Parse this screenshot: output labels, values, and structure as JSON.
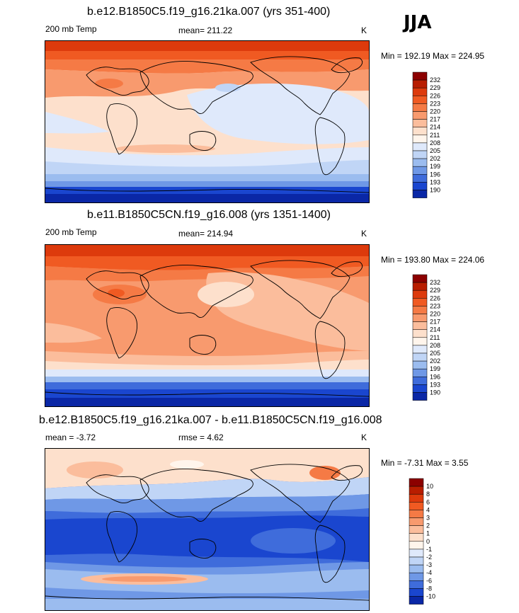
{
  "season": "JJA",
  "panels": [
    {
      "title": "b.e12.B1850C5.f19_g16.21ka.007 (yrs 351-400)",
      "left_label": "200 mb Temp",
      "center_label": "mean= 211.22",
      "units": "K",
      "minmax": "Min = 192.19 Max = 224.95",
      "colorbar_labels": [
        "232",
        "229",
        "226",
        "223",
        "220",
        "217",
        "214",
        "211",
        "208",
        "205",
        "202",
        "199",
        "196",
        "193",
        "190"
      ]
    },
    {
      "title": "b.e11.B1850C5CN.f19_g16.008 (yrs 1351-1400)",
      "left_label": "200 mb Temp",
      "center_label": "mean= 214.94",
      "units": "K",
      "minmax": "Min = 193.80 Max = 224.06",
      "colorbar_labels": [
        "232",
        "229",
        "226",
        "223",
        "220",
        "217",
        "214",
        "211",
        "208",
        "205",
        "202",
        "199",
        "196",
        "193",
        "190"
      ]
    },
    {
      "title": "b.e12.B1850C5.f19_g16.21ka.007 - b.e11.B1850C5CN.f19_g16.008",
      "left_label": "mean =  -3.72",
      "center_label": "rmse =   4.62",
      "units": "K",
      "minmax": "Min =  -7.31 Max =   3.55",
      "colorbar_labels": [
        "10",
        "8",
        "6",
        "4",
        "3",
        "2",
        "1",
        "0",
        "-1",
        "-2",
        "-3",
        "-4",
        "-6",
        "-8",
        "-10"
      ]
    }
  ],
  "colors": {
    "palette_warm_to_cold": [
      "#8c0000",
      "#b81d00",
      "#dd3a0c",
      "#f05a22",
      "#f57a45",
      "#f89a6e",
      "#fbbd9c",
      "#fde0cc",
      "#fff5ec",
      "#dfe9fb",
      "#c0d5f6",
      "#9bbcef",
      "#6f98e6",
      "#3f6cdb",
      "#1a46cf",
      "#0a27a6",
      "#050e82"
    ],
    "coast": "#000000"
  }
}
